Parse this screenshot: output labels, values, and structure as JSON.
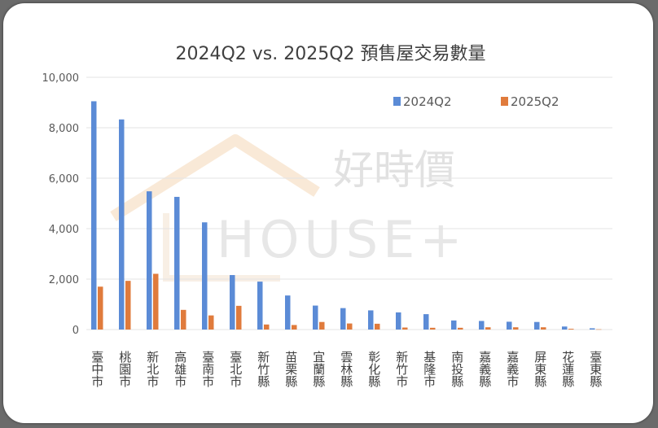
{
  "chart_data": {
    "type": "bar",
    "title": "2024Q2 vs. 2025Q2 預售屋交易數量",
    "categories": [
      "臺中市",
      "桃園市",
      "新北市",
      "高雄市",
      "臺南市",
      "臺北市",
      "新竹縣",
      "苗栗縣",
      "宜蘭縣",
      "雲林縣",
      "彰化縣",
      "新竹市",
      "基隆市",
      "南投縣",
      "嘉義縣",
      "嘉義市",
      "屏東縣",
      "花蓮縣",
      "臺東縣"
    ],
    "series": [
      {
        "name": "2024Q2",
        "color": "#5b8bd6",
        "values": [
          9050,
          8330,
          5480,
          5260,
          4250,
          2160,
          1900,
          1350,
          950,
          850,
          760,
          680,
          610,
          360,
          340,
          310,
          300,
          120,
          50
        ]
      },
      {
        "name": "2025Q2",
        "color": "#e07b3c",
        "values": [
          1700,
          1930,
          2210,
          780,
          560,
          940,
          200,
          180,
          300,
          240,
          230,
          80,
          70,
          70,
          90,
          90,
          90,
          30,
          10
        ]
      }
    ],
    "ylim": [
      0,
      10000
    ],
    "yticks": [
      "0",
      "2,000",
      "4,000",
      "6,000",
      "8,000",
      "10,000"
    ],
    "grid": true,
    "legend_position": "top-right"
  },
  "watermark": {
    "text_cn": "好時價",
    "text_en": "HOUSE+"
  }
}
